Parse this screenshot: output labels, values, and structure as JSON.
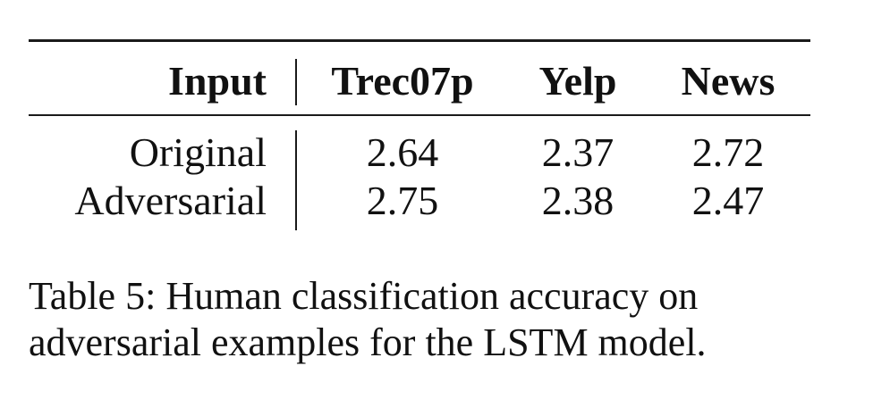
{
  "table": {
    "columns": [
      "Input",
      "Trec07p",
      "Yelp",
      "News"
    ],
    "rows": [
      {
        "label": "Original",
        "values": [
          "2.64",
          "2.37",
          "2.72"
        ]
      },
      {
        "label": "Adversarial",
        "values": [
          "2.75",
          "2.38",
          "2.47"
        ]
      }
    ]
  },
  "caption": {
    "line1": "Table 5: Human classification accuracy on",
    "line2": "adversarial examples for the LSTM model."
  }
}
